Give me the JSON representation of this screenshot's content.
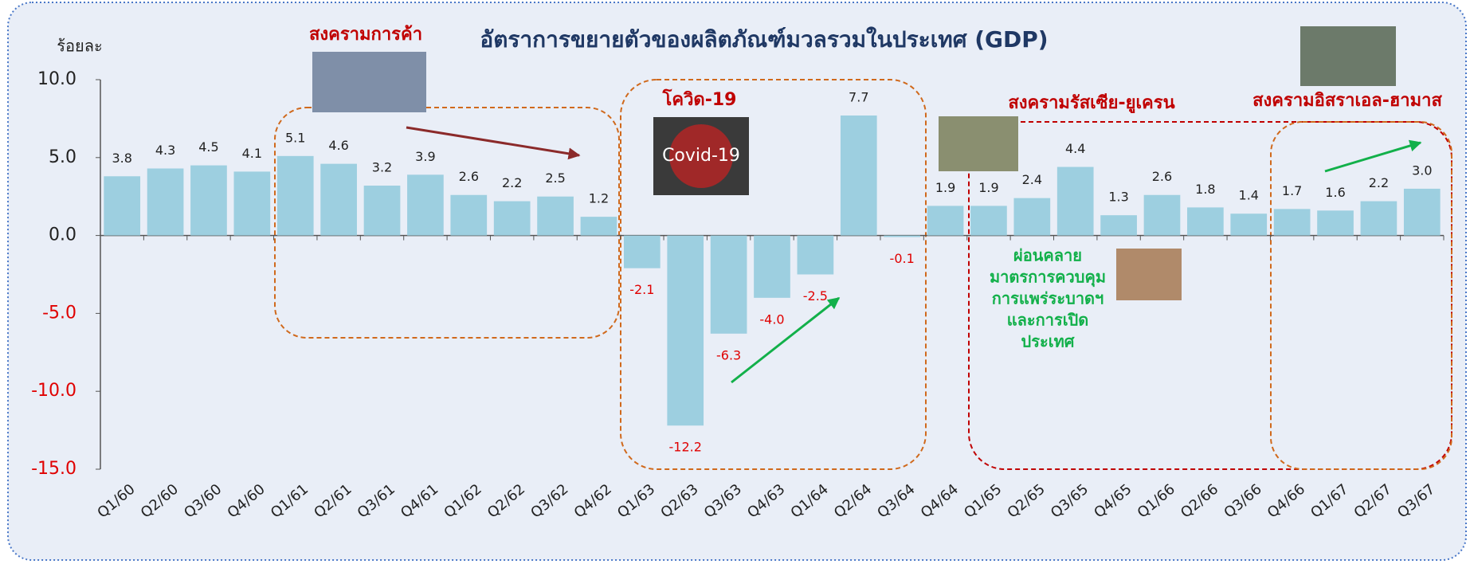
{
  "chart_data": {
    "type": "bar",
    "title": "อัตราการขยายตัวของผลิตภัณฑ์มวลรวมในประเทศ (GDP)",
    "y_label": "ร้อยละ",
    "categories": [
      "Q1/60",
      "Q2/60",
      "Q3/60",
      "Q4/60",
      "Q1/61",
      "Q2/61",
      "Q3/61",
      "Q4/61",
      "Q1/62",
      "Q2/62",
      "Q3/62",
      "Q4/62",
      "Q1/63",
      "Q2/63",
      "Q3/63",
      "Q4/63",
      "Q1/64",
      "Q2/64",
      "Q3/64",
      "Q4/64",
      "Q1/65",
      "Q2/65",
      "Q3/65",
      "Q4/65",
      "Q1/66",
      "Q2/66",
      "Q3/66",
      "Q4/66",
      "Q1/67",
      "Q2/67",
      "Q3/67"
    ],
    "values": [
      3.8,
      4.3,
      4.5,
      4.1,
      5.1,
      4.6,
      3.2,
      3.9,
      2.6,
      2.2,
      2.5,
      1.2,
      -2.1,
      -12.2,
      -6.3,
      -4.0,
      -2.5,
      7.7,
      -0.1,
      1.9,
      1.9,
      2.4,
      4.4,
      1.3,
      2.6,
      1.8,
      1.4,
      1.7,
      1.6,
      2.2,
      3.0
    ],
    "value_labels": [
      "3.8",
      "4.3",
      "4.5",
      "4.1",
      "5.1",
      "4.6",
      "3.2",
      "3.9",
      "2.6",
      "2.2",
      "2.5",
      "1.2",
      "-2.1",
      "-12.2",
      "-6.3",
      "-4.0",
      "-2.5",
      "7.7",
      "-0.1",
      "1.9",
      "1.9",
      "2.4",
      "4.4",
      "1.3",
      "2.6",
      "1.8",
      "1.4",
      "1.7",
      "1.6",
      "2.2",
      "3.0"
    ],
    "color": "#9dcfe0",
    "negative_label_color": "#e00000",
    "ylim": [
      -15,
      10
    ],
    "yticks": [
      {
        "value": -15,
        "label": "-15.0"
      },
      {
        "value": -10,
        "label": "-10.0"
      },
      {
        "value": -5,
        "label": "-5.0"
      },
      {
        "value": 0,
        "label": "0.0"
      },
      {
        "value": 5,
        "label": "5.0"
      },
      {
        "value": 10,
        "label": "10.0"
      }
    ],
    "annotations": {
      "trade_war": "สงครามการค้า",
      "covid": "โควิด-19",
      "covid_image": "Covid-19",
      "russia_ukraine": "สงครามรัสเซีย-ยูเครน",
      "israel_hamas": "สงครามอิสราเอล-ฮามาส",
      "reopening": [
        "ผ่อนคลาย",
        "มาตรการควบคุม",
        "การแพร่ระบาดฯ",
        "และการเปิด",
        "ประเทศ"
      ]
    }
  }
}
